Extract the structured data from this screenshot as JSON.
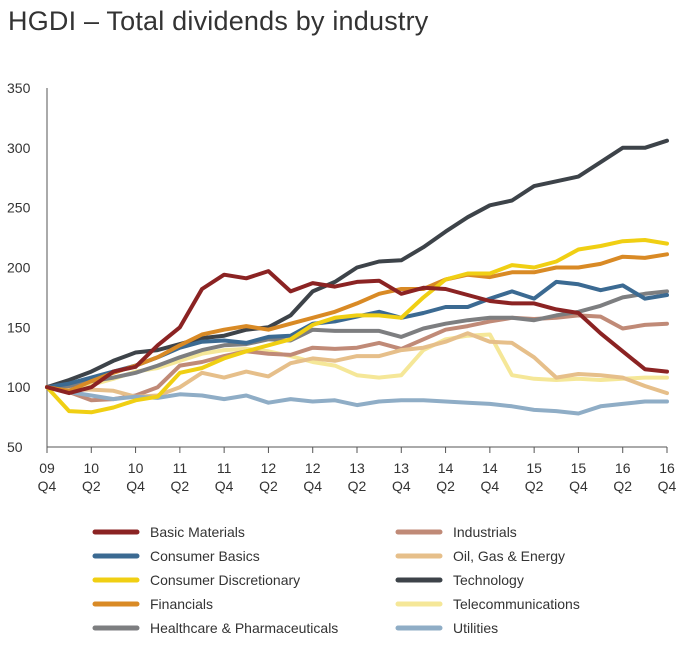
{
  "title": "HGDI – Total dividends by industry",
  "chart_data": {
    "type": "line",
    "title": "HGDI – Total dividends by industry",
    "xlabel": "",
    "ylabel": "",
    "ylim": [
      50,
      350
    ],
    "yticks": [
      "50",
      "100",
      "150",
      "200",
      "250",
      "300",
      "350"
    ],
    "xticks": [
      {
        "year": "09",
        "q": "Q4"
      },
      {
        "year": "10",
        "q": "Q2"
      },
      {
        "year": "10",
        "q": "Q4"
      },
      {
        "year": "11",
        "q": "Q2"
      },
      {
        "year": "11",
        "q": "Q4"
      },
      {
        "year": "12",
        "q": "Q2"
      },
      {
        "year": "12",
        "q": "Q4"
      },
      {
        "year": "13",
        "q": "Q2"
      },
      {
        "year": "13",
        "q": "Q4"
      },
      {
        "year": "14",
        "q": "Q2"
      },
      {
        "year": "14",
        "q": "Q4"
      },
      {
        "year": "15",
        "q": "Q2"
      },
      {
        "year": "15",
        "q": "Q4"
      },
      {
        "year": "16",
        "q": "Q2"
      },
      {
        "year": "16",
        "q": "Q4"
      }
    ],
    "x_months": [
      0,
      1,
      2,
      3,
      4,
      5,
      6,
      7,
      8,
      9,
      10,
      11,
      12,
      13,
      14,
      15,
      16,
      17,
      18,
      19,
      20,
      21,
      22,
      23,
      24,
      25,
      26,
      27,
      28,
      29,
      30,
      31,
      32,
      33,
      34,
      35,
      36,
      37,
      38,
      39,
      40,
      41,
      42,
      43,
      44,
      45,
      46,
      47,
      48,
      49,
      50,
      51,
      52,
      53,
      54,
      55,
      56,
      57,
      58,
      59,
      60,
      61,
      62,
      63,
      64,
      65,
      66,
      67,
      68,
      69,
      70,
      71,
      72,
      73,
      74,
      75,
      76,
      77,
      78,
      79,
      80,
      81,
      82,
      83,
      84
    ],
    "grid": false,
    "legend_position": "bottom",
    "series": [
      {
        "name": "Basic Materials",
        "color": "#8b2323",
        "values": [
          [
            0,
            100
          ],
          [
            3,
            95
          ],
          [
            6,
            100
          ],
          [
            9,
            113
          ],
          [
            12,
            117
          ],
          [
            15,
            135
          ],
          [
            18,
            150
          ],
          [
            21,
            182
          ],
          [
            24,
            194
          ],
          [
            27,
            191
          ],
          [
            30,
            197
          ],
          [
            33,
            180
          ],
          [
            36,
            187
          ],
          [
            39,
            184
          ],
          [
            42,
            188
          ],
          [
            45,
            189
          ],
          [
            48,
            178
          ],
          [
            51,
            183
          ],
          [
            54,
            182
          ],
          [
            57,
            177
          ],
          [
            60,
            172
          ],
          [
            63,
            170
          ],
          [
            66,
            170
          ],
          [
            69,
            165
          ],
          [
            72,
            162
          ],
          [
            75,
            145
          ],
          [
            78,
            130
          ],
          [
            81,
            115
          ],
          [
            84,
            113
          ]
        ]
      },
      {
        "name": "Consumer Basics",
        "color": "#3b6a92",
        "values": [
          [
            0,
            100
          ],
          [
            3,
            103
          ],
          [
            6,
            108
          ],
          [
            9,
            113
          ],
          [
            12,
            118
          ],
          [
            15,
            125
          ],
          [
            18,
            133
          ],
          [
            21,
            138
          ],
          [
            24,
            139
          ],
          [
            27,
            137
          ],
          [
            30,
            142
          ],
          [
            33,
            143
          ],
          [
            36,
            153
          ],
          [
            39,
            155
          ],
          [
            42,
            159
          ],
          [
            45,
            163
          ],
          [
            48,
            158
          ],
          [
            51,
            162
          ],
          [
            54,
            167
          ],
          [
            57,
            167
          ],
          [
            60,
            174
          ],
          [
            63,
            180
          ],
          [
            66,
            174
          ],
          [
            69,
            188
          ],
          [
            72,
            186
          ],
          [
            75,
            181
          ],
          [
            78,
            185
          ],
          [
            81,
            174
          ],
          [
            84,
            177
          ]
        ]
      },
      {
        "name": "Consumer Discretionary",
        "color": "#f0cf13",
        "values": [
          [
            0,
            100
          ],
          [
            3,
            80
          ],
          [
            6,
            79
          ],
          [
            9,
            83
          ],
          [
            12,
            89
          ],
          [
            15,
            92
          ],
          [
            18,
            112
          ],
          [
            21,
            116
          ],
          [
            24,
            124
          ],
          [
            27,
            130
          ],
          [
            30,
            135
          ],
          [
            33,
            140
          ],
          [
            36,
            152
          ],
          [
            39,
            158
          ],
          [
            42,
            160
          ],
          [
            45,
            160
          ],
          [
            48,
            158
          ],
          [
            51,
            175
          ],
          [
            54,
            190
          ],
          [
            57,
            195
          ],
          [
            60,
            195
          ],
          [
            63,
            202
          ],
          [
            66,
            200
          ],
          [
            69,
            205
          ],
          [
            72,
            215
          ],
          [
            75,
            218
          ],
          [
            78,
            222
          ],
          [
            81,
            223
          ],
          [
            84,
            220
          ]
        ]
      },
      {
        "name": "Financials",
        "color": "#d98a25",
        "values": [
          [
            0,
            100
          ],
          [
            3,
            97
          ],
          [
            6,
            105
          ],
          [
            9,
            112
          ],
          [
            12,
            118
          ],
          [
            15,
            125
          ],
          [
            18,
            135
          ],
          [
            21,
            144
          ],
          [
            24,
            148
          ],
          [
            27,
            151
          ],
          [
            30,
            148
          ],
          [
            33,
            153
          ],
          [
            36,
            158
          ],
          [
            39,
            163
          ],
          [
            42,
            170
          ],
          [
            45,
            178
          ],
          [
            48,
            182
          ],
          [
            51,
            182
          ],
          [
            54,
            190
          ],
          [
            57,
            194
          ],
          [
            60,
            192
          ],
          [
            63,
            196
          ],
          [
            66,
            196
          ],
          [
            69,
            200
          ],
          [
            72,
            200
          ],
          [
            75,
            203
          ],
          [
            78,
            209
          ],
          [
            81,
            208
          ],
          [
            84,
            211
          ]
        ]
      },
      {
        "name": "Healthcare & Pharmaceuticals",
        "color": "#7d7e80",
        "values": [
          [
            0,
            100
          ],
          [
            3,
            101
          ],
          [
            6,
            105
          ],
          [
            9,
            108
          ],
          [
            12,
            112
          ],
          [
            15,
            118
          ],
          [
            18,
            125
          ],
          [
            21,
            131
          ],
          [
            24,
            135
          ],
          [
            27,
            136
          ],
          [
            30,
            140
          ],
          [
            33,
            139
          ],
          [
            36,
            148
          ],
          [
            39,
            147
          ],
          [
            42,
            147
          ],
          [
            45,
            147
          ],
          [
            48,
            142
          ],
          [
            51,
            149
          ],
          [
            54,
            153
          ],
          [
            57,
            156
          ],
          [
            60,
            158
          ],
          [
            63,
            158
          ],
          [
            66,
            156
          ],
          [
            69,
            160
          ],
          [
            72,
            163
          ],
          [
            75,
            168
          ],
          [
            78,
            175
          ],
          [
            81,
            178
          ],
          [
            84,
            180
          ]
        ]
      },
      {
        "name": "Industrials",
        "color": "#c08a77",
        "values": [
          [
            0,
            100
          ],
          [
            3,
            96
          ],
          [
            6,
            89
          ],
          [
            9,
            90
          ],
          [
            12,
            93
          ],
          [
            15,
            100
          ],
          [
            18,
            118
          ],
          [
            21,
            121
          ],
          [
            24,
            126
          ],
          [
            27,
            130
          ],
          [
            30,
            128
          ],
          [
            33,
            127
          ],
          [
            36,
            133
          ],
          [
            39,
            132
          ],
          [
            42,
            133
          ],
          [
            45,
            137
          ],
          [
            48,
            132
          ],
          [
            51,
            140
          ],
          [
            54,
            148
          ],
          [
            57,
            151
          ],
          [
            60,
            155
          ],
          [
            63,
            158
          ],
          [
            66,
            157
          ],
          [
            69,
            158
          ],
          [
            72,
            160
          ],
          [
            75,
            159
          ],
          [
            78,
            149
          ],
          [
            81,
            152
          ],
          [
            84,
            153
          ]
        ]
      },
      {
        "name": "Oil, Gas & Energy",
        "color": "#e6bf8a",
        "values": [
          [
            0,
            100
          ],
          [
            3,
            98
          ],
          [
            6,
            98
          ],
          [
            9,
            97
          ],
          [
            12,
            92
          ],
          [
            15,
            93
          ],
          [
            18,
            100
          ],
          [
            21,
            112
          ],
          [
            24,
            108
          ],
          [
            27,
            113
          ],
          [
            30,
            109
          ],
          [
            33,
            120
          ],
          [
            36,
            124
          ],
          [
            39,
            122
          ],
          [
            42,
            126
          ],
          [
            45,
            126
          ],
          [
            48,
            131
          ],
          [
            51,
            133
          ],
          [
            54,
            138
          ],
          [
            57,
            145
          ],
          [
            60,
            138
          ],
          [
            63,
            137
          ],
          [
            66,
            125
          ],
          [
            69,
            108
          ],
          [
            72,
            111
          ],
          [
            75,
            110
          ],
          [
            78,
            108
          ],
          [
            81,
            101
          ],
          [
            84,
            95
          ]
        ]
      },
      {
        "name": "Technology",
        "color": "#3d4349",
        "values": [
          [
            0,
            100
          ],
          [
            3,
            106
          ],
          [
            6,
            113
          ],
          [
            9,
            122
          ],
          [
            12,
            129
          ],
          [
            15,
            131
          ],
          [
            18,
            136
          ],
          [
            21,
            141
          ],
          [
            24,
            143
          ],
          [
            27,
            148
          ],
          [
            30,
            150
          ],
          [
            33,
            160
          ],
          [
            36,
            180
          ],
          [
            39,
            188
          ],
          [
            42,
            200
          ],
          [
            45,
            205
          ],
          [
            48,
            206
          ],
          [
            51,
            217
          ],
          [
            54,
            230
          ],
          [
            57,
            242
          ],
          [
            60,
            252
          ],
          [
            63,
            256
          ],
          [
            66,
            268
          ],
          [
            69,
            272
          ],
          [
            72,
            276
          ],
          [
            75,
            288
          ],
          [
            78,
            300
          ],
          [
            81,
            300
          ],
          [
            84,
            306
          ]
        ]
      },
      {
        "name": "Telecommunications",
        "color": "#f5e798",
        "values": [
          [
            0,
            100
          ],
          [
            3,
            97
          ],
          [
            6,
            102
          ],
          [
            9,
            107
          ],
          [
            12,
            113
          ],
          [
            15,
            116
          ],
          [
            18,
            122
          ],
          [
            21,
            128
          ],
          [
            24,
            131
          ],
          [
            27,
            132
          ],
          [
            30,
            130
          ],
          [
            33,
            126
          ],
          [
            36,
            121
          ],
          [
            39,
            118
          ],
          [
            42,
            110
          ],
          [
            45,
            108
          ],
          [
            48,
            110
          ],
          [
            51,
            131
          ],
          [
            54,
            140
          ],
          [
            57,
            143
          ],
          [
            60,
            144
          ],
          [
            63,
            110
          ],
          [
            66,
            107
          ],
          [
            69,
            106
          ],
          [
            72,
            107
          ],
          [
            75,
            106
          ],
          [
            78,
            107
          ],
          [
            81,
            108
          ],
          [
            84,
            108
          ]
        ]
      },
      {
        "name": "Utilities",
        "color": "#8fadc6",
        "values": [
          [
            0,
            100
          ],
          [
            3,
            96
          ],
          [
            6,
            93
          ],
          [
            9,
            90
          ],
          [
            12,
            92
          ],
          [
            15,
            91
          ],
          [
            18,
            94
          ],
          [
            21,
            93
          ],
          [
            24,
            90
          ],
          [
            27,
            93
          ],
          [
            30,
            87
          ],
          [
            33,
            90
          ],
          [
            36,
            88
          ],
          [
            39,
            89
          ],
          [
            42,
            85
          ],
          [
            45,
            88
          ],
          [
            48,
            89
          ],
          [
            51,
            89
          ],
          [
            54,
            88
          ],
          [
            57,
            87
          ],
          [
            60,
            86
          ],
          [
            63,
            84
          ],
          [
            66,
            81
          ],
          [
            69,
            80
          ],
          [
            72,
            78
          ],
          [
            75,
            84
          ],
          [
            78,
            86
          ],
          [
            81,
            88
          ],
          [
            84,
            88
          ]
        ]
      }
    ]
  }
}
